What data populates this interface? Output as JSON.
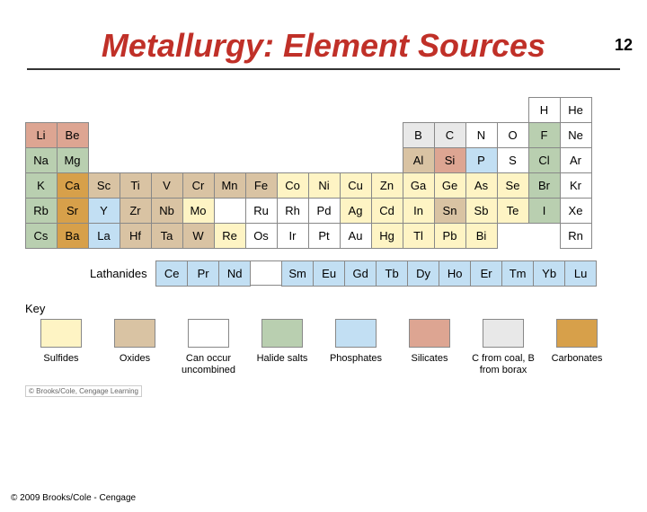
{
  "page_number": "12",
  "title": "Metallurgy: Element Sources",
  "colors": {
    "sulfides": "#fef4c4",
    "oxides": "#d9c3a3",
    "uncombined": "#ffffff",
    "halide": "#b9cfb0",
    "phosphates": "#c2dff3",
    "silicates": "#dda592",
    "c_b": "#e8e8e8",
    "carbonates": "#d7a04a"
  },
  "elements": [
    {
      "sym": "H",
      "r": 1,
      "c": 17,
      "cat": "uncombined"
    },
    {
      "sym": "He",
      "r": 1,
      "c": 18,
      "cat": "uncombined"
    },
    {
      "sym": "Li",
      "r": 2,
      "c": 1,
      "cat": "silicates"
    },
    {
      "sym": "Be",
      "r": 2,
      "c": 2,
      "cat": "silicates"
    },
    {
      "sym": "B",
      "r": 2,
      "c": 13,
      "cat": "c_b"
    },
    {
      "sym": "C",
      "r": 2,
      "c": 14,
      "cat": "c_b"
    },
    {
      "sym": "N",
      "r": 2,
      "c": 15,
      "cat": "uncombined"
    },
    {
      "sym": "O",
      "r": 2,
      "c": 16,
      "cat": "uncombined"
    },
    {
      "sym": "F",
      "r": 2,
      "c": 17,
      "cat": "halide"
    },
    {
      "sym": "Ne",
      "r": 2,
      "c": 18,
      "cat": "uncombined"
    },
    {
      "sym": "Na",
      "r": 3,
      "c": 1,
      "cat": "halide"
    },
    {
      "sym": "Mg",
      "r": 3,
      "c": 2,
      "cat": "halide"
    },
    {
      "sym": "Al",
      "r": 3,
      "c": 13,
      "cat": "oxides"
    },
    {
      "sym": "Si",
      "r": 3,
      "c": 14,
      "cat": "silicates"
    },
    {
      "sym": "P",
      "r": 3,
      "c": 15,
      "cat": "phosphates"
    },
    {
      "sym": "S",
      "r": 3,
      "c": 16,
      "cat": "uncombined"
    },
    {
      "sym": "Cl",
      "r": 3,
      "c": 17,
      "cat": "halide"
    },
    {
      "sym": "Ar",
      "r": 3,
      "c": 18,
      "cat": "uncombined"
    },
    {
      "sym": "K",
      "r": 4,
      "c": 1,
      "cat": "halide"
    },
    {
      "sym": "Ca",
      "r": 4,
      "c": 2,
      "cat": "carbonates"
    },
    {
      "sym": "Sc",
      "r": 4,
      "c": 3,
      "cat": "oxides"
    },
    {
      "sym": "Ti",
      "r": 4,
      "c": 4,
      "cat": "oxides"
    },
    {
      "sym": "V",
      "r": 4,
      "c": 5,
      "cat": "oxides"
    },
    {
      "sym": "Cr",
      "r": 4,
      "c": 6,
      "cat": "oxides"
    },
    {
      "sym": "Mn",
      "r": 4,
      "c": 7,
      "cat": "oxides"
    },
    {
      "sym": "Fe",
      "r": 4,
      "c": 8,
      "cat": "oxides"
    },
    {
      "sym": "Co",
      "r": 4,
      "c": 9,
      "cat": "sulfides"
    },
    {
      "sym": "Ni",
      "r": 4,
      "c": 10,
      "cat": "sulfides"
    },
    {
      "sym": "Cu",
      "r": 4,
      "c": 11,
      "cat": "sulfides"
    },
    {
      "sym": "Zn",
      "r": 4,
      "c": 12,
      "cat": "sulfides"
    },
    {
      "sym": "Ga",
      "r": 4,
      "c": 13,
      "cat": "sulfides"
    },
    {
      "sym": "Ge",
      "r": 4,
      "c": 14,
      "cat": "sulfides"
    },
    {
      "sym": "As",
      "r": 4,
      "c": 15,
      "cat": "sulfides"
    },
    {
      "sym": "Se",
      "r": 4,
      "c": 16,
      "cat": "sulfides"
    },
    {
      "sym": "Br",
      "r": 4,
      "c": 17,
      "cat": "halide"
    },
    {
      "sym": "Kr",
      "r": 4,
      "c": 18,
      "cat": "uncombined"
    },
    {
      "sym": "Rb",
      "r": 5,
      "c": 1,
      "cat": "halide"
    },
    {
      "sym": "Sr",
      "r": 5,
      "c": 2,
      "cat": "carbonates"
    },
    {
      "sym": "Y",
      "r": 5,
      "c": 3,
      "cat": "phosphates"
    },
    {
      "sym": "Zr",
      "r": 5,
      "c": 4,
      "cat": "oxides"
    },
    {
      "sym": "Nb",
      "r": 5,
      "c": 5,
      "cat": "oxides"
    },
    {
      "sym": "Mo",
      "r": 5,
      "c": 6,
      "cat": "sulfides"
    },
    {
      "sym": "",
      "r": 5,
      "c": 7,
      "cat": "uncombined"
    },
    {
      "sym": "Ru",
      "r": 5,
      "c": 8,
      "cat": "uncombined"
    },
    {
      "sym": "Rh",
      "r": 5,
      "c": 9,
      "cat": "uncombined"
    },
    {
      "sym": "Pd",
      "r": 5,
      "c": 10,
      "cat": "uncombined"
    },
    {
      "sym": "Ag",
      "r": 5,
      "c": 11,
      "cat": "sulfides"
    },
    {
      "sym": "Cd",
      "r": 5,
      "c": 12,
      "cat": "sulfides"
    },
    {
      "sym": "In",
      "r": 5,
      "c": 13,
      "cat": "sulfides"
    },
    {
      "sym": "Sn",
      "r": 5,
      "c": 14,
      "cat": "oxides"
    },
    {
      "sym": "Sb",
      "r": 5,
      "c": 15,
      "cat": "sulfides"
    },
    {
      "sym": "Te",
      "r": 5,
      "c": 16,
      "cat": "sulfides"
    },
    {
      "sym": "I",
      "r": 5,
      "c": 17,
      "cat": "halide"
    },
    {
      "sym": "Xe",
      "r": 5,
      "c": 18,
      "cat": "uncombined"
    },
    {
      "sym": "Cs",
      "r": 6,
      "c": 1,
      "cat": "halide"
    },
    {
      "sym": "Ba",
      "r": 6,
      "c": 2,
      "cat": "carbonates"
    },
    {
      "sym": "La",
      "r": 6,
      "c": 3,
      "cat": "phosphates"
    },
    {
      "sym": "Hf",
      "r": 6,
      "c": 4,
      "cat": "oxides"
    },
    {
      "sym": "Ta",
      "r": 6,
      "c": 5,
      "cat": "oxides"
    },
    {
      "sym": "W",
      "r": 6,
      "c": 6,
      "cat": "oxides"
    },
    {
      "sym": "Re",
      "r": 6,
      "c": 7,
      "cat": "sulfides"
    },
    {
      "sym": "Os",
      "r": 6,
      "c": 8,
      "cat": "uncombined"
    },
    {
      "sym": "Ir",
      "r": 6,
      "c": 9,
      "cat": "uncombined"
    },
    {
      "sym": "Pt",
      "r": 6,
      "c": 10,
      "cat": "uncombined"
    },
    {
      "sym": "Au",
      "r": 6,
      "c": 11,
      "cat": "uncombined"
    },
    {
      "sym": "Hg",
      "r": 6,
      "c": 12,
      "cat": "sulfides"
    },
    {
      "sym": "Tl",
      "r": 6,
      "c": 13,
      "cat": "sulfides"
    },
    {
      "sym": "Pb",
      "r": 6,
      "c": 14,
      "cat": "sulfides"
    },
    {
      "sym": "Bi",
      "r": 6,
      "c": 15,
      "cat": "sulfides"
    },
    {
      "sym": "Rn",
      "r": 6,
      "c": 18,
      "cat": "uncombined"
    }
  ],
  "lanthanides_label": "Lathanides",
  "lanthanides": [
    {
      "sym": "Ce",
      "cat": "phosphates"
    },
    {
      "sym": "Pr",
      "cat": "phosphates"
    },
    {
      "sym": "Nd",
      "cat": "phosphates"
    },
    null,
    {
      "sym": "Sm",
      "cat": "phosphates"
    },
    {
      "sym": "Eu",
      "cat": "phosphates"
    },
    {
      "sym": "Gd",
      "cat": "phosphates"
    },
    {
      "sym": "Tb",
      "cat": "phosphates"
    },
    {
      "sym": "Dy",
      "cat": "phosphates"
    },
    {
      "sym": "Ho",
      "cat": "phosphates"
    },
    {
      "sym": "Er",
      "cat": "phosphates"
    },
    {
      "sym": "Tm",
      "cat": "phosphates"
    },
    {
      "sym": "Yb",
      "cat": "phosphates"
    },
    {
      "sym": "Lu",
      "cat": "phosphates"
    }
  ],
  "key_label": "Key",
  "legend": [
    {
      "cat": "sulfides",
      "label": "Sulfides"
    },
    {
      "cat": "oxides",
      "label": "Oxides"
    },
    {
      "cat": "uncombined",
      "label": "Can occur uncombined"
    },
    {
      "cat": "halide",
      "label": "Halide salts"
    },
    {
      "cat": "phosphates",
      "label": "Phosphates"
    },
    {
      "cat": "silicates",
      "label": "Silicates"
    },
    {
      "cat": "c_b",
      "label": "C from coal, B from borax"
    },
    {
      "cat": "carbonates",
      "label": "Carbonates"
    }
  ],
  "attribution": "© Brooks/Cole, Cengage Learning",
  "copyright": "© 2009 Brooks/Cole - Cengage"
}
